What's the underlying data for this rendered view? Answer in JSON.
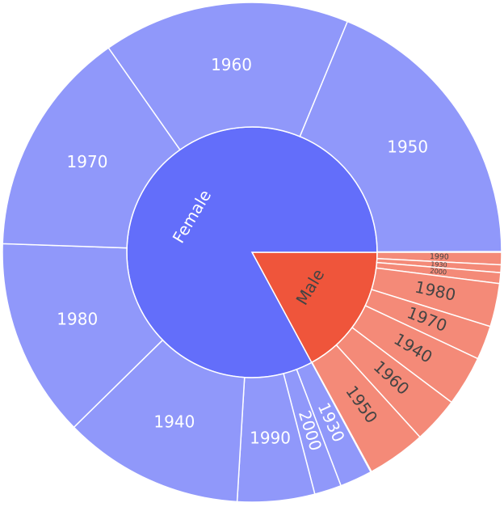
{
  "chart_data": {
    "type": "sunburst",
    "nodes": [
      {
        "name": "Male",
        "value": 17.1,
        "color": "#ef553b",
        "child_color": "#f48a78",
        "text_color": "#444444",
        "children": [
          {
            "name": "1990",
            "value": 0.8
          },
          {
            "name": "1930",
            "value": 0.5
          },
          {
            "name": "2000",
            "value": 0.7
          },
          {
            "name": "1980",
            "value": 2.8
          },
          {
            "name": "1970",
            "value": 2.2
          },
          {
            "name": "1940",
            "value": 3.25
          },
          {
            "name": "1960",
            "value": 3.0
          },
          {
            "name": "1950",
            "value": 3.8
          }
        ]
      },
      {
        "name": "Female",
        "value": 82.9,
        "color": "#636efa",
        "child_color": "#9098fa",
        "text_color": "#ffffff",
        "children": [
          {
            "name": "1930",
            "value": 2.1
          },
          {
            "name": "2000",
            "value": 1.75
          },
          {
            "name": "1990",
            "value": 5.0
          },
          {
            "name": "1940",
            "value": 11.7
          },
          {
            "name": "1980",
            "value": 12.9
          },
          {
            "name": "1970",
            "value": 14.7
          },
          {
            "name": "1960",
            "value": 16.0
          },
          {
            "name": "1950",
            "value": 18.7
          }
        ]
      }
    ]
  }
}
